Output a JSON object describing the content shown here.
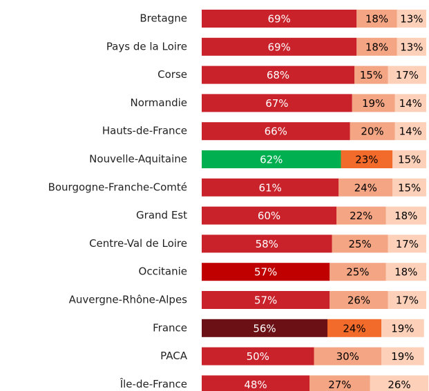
{
  "chart_data": {
    "type": "stacked-barh",
    "categories": [
      "Bretagne",
      "Pays de la Loire",
      "Corse",
      "Normandie",
      "Hauts-de-France",
      "Nouvelle-Aquitaine",
      "Bourgogne-Franche-Comté",
      "Grand Est",
      "Centre-Val de Loire",
      "Occitanie",
      "Auvergne-Rhône-Alpes",
      "France",
      "PACA",
      "Île-de-France"
    ],
    "series": [
      {
        "values": [
          69,
          69,
          68,
          67,
          66,
          62,
          61,
          60,
          58,
          57,
          57,
          56,
          50,
          48
        ],
        "value_labels": [
          "69%",
          "69%",
          "68%",
          "67%",
          "66%",
          "62%",
          "61%",
          "60%",
          "58%",
          "57%",
          "57%",
          "56%",
          "50%",
          "48%"
        ],
        "colors": [
          "#c9222b",
          "#c9222b",
          "#c9222b",
          "#c9222b",
          "#c9222b",
          "#00b050",
          "#c9222b",
          "#c9222b",
          "#c9222b",
          "#c00000",
          "#c9222b",
          "#6b1014",
          "#c9222b",
          "#c9222b"
        ],
        "label_color": "#ffffff"
      },
      {
        "values": [
          18,
          18,
          15,
          19,
          20,
          23,
          24,
          22,
          25,
          25,
          26,
          24,
          30,
          27
        ],
        "value_labels": [
          "18%",
          "18%",
          "15%",
          "19%",
          "20%",
          "23%",
          "24%",
          "22%",
          "25%",
          "25%",
          "26%",
          "24%",
          "30%",
          "27%"
        ],
        "colors": [
          "#f4a583",
          "#f4a583",
          "#f4a583",
          "#f4a583",
          "#f4a583",
          "#f26b2b",
          "#f4a583",
          "#f4a583",
          "#f4a583",
          "#f4a583",
          "#f4a583",
          "#f26b2b",
          "#f4a583",
          "#f4a583"
        ],
        "label_color": "#000000"
      },
      {
        "values": [
          13,
          13,
          17,
          14,
          14,
          15,
          15,
          18,
          17,
          18,
          17,
          19,
          19,
          26
        ],
        "value_labels": [
          "13%",
          "13%",
          "17%",
          "14%",
          "14%",
          "15%",
          "15%",
          "18%",
          "17%",
          "18%",
          "17%",
          "19%",
          "19%",
          "26%"
        ],
        "colors": [
          "#fcd0b9",
          "#fcd0b9",
          "#fcd0b9",
          "#fcd0b9",
          "#fcd0b9",
          "#fcd0b9",
          "#fcd0b9",
          "#fcd0b9",
          "#fcd0b9",
          "#fcd0b9",
          "#fcd0b9",
          "#fcd0b9",
          "#fcd0b9",
          "#fcd0b9"
        ],
        "label_color": "#000000"
      }
    ]
  }
}
